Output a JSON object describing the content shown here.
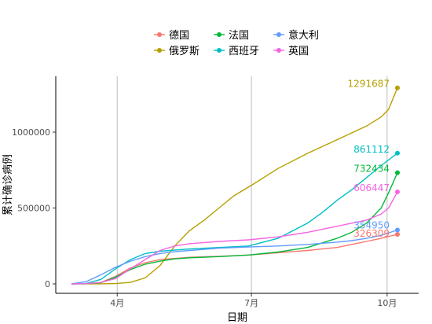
{
  "chart_data": {
    "type": "line",
    "xlabel": "日期",
    "ylabel": "累计确诊病例",
    "ylim": [
      -30000,
      1380000
    ],
    "xlim_days": [
      0,
      230
    ],
    "y_ticks": [
      0,
      500000,
      1000000
    ],
    "y_tick_labels": [
      "0",
      "500000",
      "1000000"
    ],
    "x_ticks": [
      {
        "day": 31,
        "label": "4月"
      },
      {
        "day": 122,
        "label": "7月"
      },
      {
        "day": 214,
        "label": "10月"
      }
    ],
    "grid": {
      "vertical_major": true,
      "horizontal": false
    },
    "legend_position": "top",
    "series": [
      {
        "name": "德国",
        "color": "#F8766D",
        "end_label": "326309",
        "end_value": 326309,
        "points": [
          [
            0,
            0
          ],
          [
            10,
            2000
          ],
          [
            20,
            10000
          ],
          [
            30,
            50000
          ],
          [
            40,
            105000
          ],
          [
            50,
            140000
          ],
          [
            60,
            160000
          ],
          [
            80,
            175000
          ],
          [
            100,
            182000
          ],
          [
            120,
            190000
          ],
          [
            140,
            205000
          ],
          [
            160,
            220000
          ],
          [
            170,
            230000
          ],
          [
            180,
            240000
          ],
          [
            190,
            260000
          ],
          [
            200,
            280000
          ],
          [
            210,
            300000
          ],
          [
            221,
            326309
          ]
        ]
      },
      {
        "name": "俄罗斯",
        "color": "#B79F00",
        "end_label": "1291687",
        "end_value": 1291687,
        "points": [
          [
            0,
            0
          ],
          [
            20,
            500
          ],
          [
            30,
            2000
          ],
          [
            40,
            10000
          ],
          [
            50,
            40000
          ],
          [
            60,
            120000
          ],
          [
            70,
            250000
          ],
          [
            80,
            350000
          ],
          [
            90,
            420000
          ],
          [
            100,
            500000
          ],
          [
            110,
            580000
          ],
          [
            122,
            650000
          ],
          [
            140,
            760000
          ],
          [
            160,
            860000
          ],
          [
            180,
            950000
          ],
          [
            200,
            1040000
          ],
          [
            210,
            1100000
          ],
          [
            215,
            1150000
          ],
          [
            221,
            1291687
          ]
        ]
      },
      {
        "name": "法国",
        "color": "#00BA38",
        "end_label": "732434",
        "end_value": 732434,
        "points": [
          [
            0,
            0
          ],
          [
            10,
            1500
          ],
          [
            20,
            8000
          ],
          [
            30,
            45000
          ],
          [
            40,
            95000
          ],
          [
            50,
            130000
          ],
          [
            60,
            150000
          ],
          [
            70,
            165000
          ],
          [
            80,
            172000
          ],
          [
            100,
            180000
          ],
          [
            120,
            190000
          ],
          [
            140,
            210000
          ],
          [
            160,
            240000
          ],
          [
            180,
            300000
          ],
          [
            190,
            340000
          ],
          [
            200,
            400000
          ],
          [
            210,
            500000
          ],
          [
            215,
            600000
          ],
          [
            221,
            732434
          ]
        ]
      },
      {
        "name": "西班牙",
        "color": "#00BFC4",
        "end_label": "861112",
        "end_value": 861112,
        "points": [
          [
            0,
            0
          ],
          [
            10,
            3000
          ],
          [
            20,
            30000
          ],
          [
            30,
            100000
          ],
          [
            40,
            160000
          ],
          [
            50,
            200000
          ],
          [
            60,
            215000
          ],
          [
            80,
            230000
          ],
          [
            100,
            240000
          ],
          [
            120,
            250000
          ],
          [
            140,
            300000
          ],
          [
            160,
            400000
          ],
          [
            170,
            470000
          ],
          [
            180,
            550000
          ],
          [
            190,
            620000
          ],
          [
            200,
            700000
          ],
          [
            210,
            780000
          ],
          [
            221,
            861112
          ]
        ]
      },
      {
        "name": "意大利",
        "color": "#619CFF",
        "end_label": "354950",
        "end_value": 354950,
        "points": [
          [
            0,
            0
          ],
          [
            10,
            15000
          ],
          [
            20,
            60000
          ],
          [
            30,
            110000
          ],
          [
            40,
            150000
          ],
          [
            50,
            180000
          ],
          [
            60,
            200000
          ],
          [
            70,
            212000
          ],
          [
            80,
            220000
          ],
          [
            100,
            235000
          ],
          [
            120,
            243000
          ],
          [
            140,
            250000
          ],
          [
            160,
            260000
          ],
          [
            180,
            275000
          ],
          [
            190,
            285000
          ],
          [
            200,
            300000
          ],
          [
            210,
            320000
          ],
          [
            221,
            354950
          ]
        ]
      },
      {
        "name": "英国",
        "color": "#F564E3",
        "end_label": "606447",
        "end_value": 606447,
        "points": [
          [
            0,
            0
          ],
          [
            10,
            1500
          ],
          [
            20,
            10000
          ],
          [
            30,
            35000
          ],
          [
            40,
            100000
          ],
          [
            50,
            160000
          ],
          [
            60,
            220000
          ],
          [
            70,
            250000
          ],
          [
            80,
            265000
          ],
          [
            100,
            280000
          ],
          [
            120,
            290000
          ],
          [
            140,
            310000
          ],
          [
            160,
            340000
          ],
          [
            180,
            380000
          ],
          [
            190,
            400000
          ],
          [
            200,
            420000
          ],
          [
            210,
            460000
          ],
          [
            215,
            500000
          ],
          [
            221,
            606447
          ]
        ]
      }
    ]
  }
}
